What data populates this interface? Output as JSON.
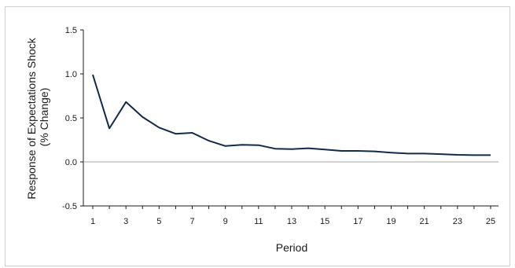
{
  "chart_data": {
    "type": "line",
    "title": "",
    "xlabel": "Period",
    "ylabel_lines": [
      "Response of Expectations Shock",
      "(% Change)"
    ],
    "x": [
      1,
      2,
      3,
      4,
      5,
      6,
      7,
      8,
      9,
      10,
      11,
      12,
      13,
      14,
      15,
      16,
      17,
      18,
      19,
      20,
      21,
      22,
      23,
      24,
      25
    ],
    "x_tick_labels": [
      "1",
      "3",
      "5",
      "7",
      "9",
      "11",
      "13",
      "15",
      "17",
      "19",
      "21",
      "23",
      "25"
    ],
    "y_ticks": [
      -0.5,
      0.0,
      0.5,
      1.0,
      1.5
    ],
    "y_tick_labels": [
      "-0.5",
      "0.0",
      "0.5",
      "1.0",
      "1.5"
    ],
    "ylim": [
      -0.5,
      1.5
    ],
    "xlim": [
      1,
      25
    ],
    "series": [
      {
        "values": [
          0.99,
          0.38,
          0.68,
          0.51,
          0.39,
          0.32,
          0.33,
          0.24,
          0.18,
          0.195,
          0.19,
          0.15,
          0.145,
          0.155,
          0.14,
          0.125,
          0.125,
          0.12,
          0.105,
          0.095,
          0.095,
          0.088,
          0.08,
          0.077,
          0.077
        ],
        "color": "#132a4a"
      }
    ],
    "grid": false,
    "zero_line_color": "#a6a6a6",
    "axis_color": "#1a1a1a"
  }
}
